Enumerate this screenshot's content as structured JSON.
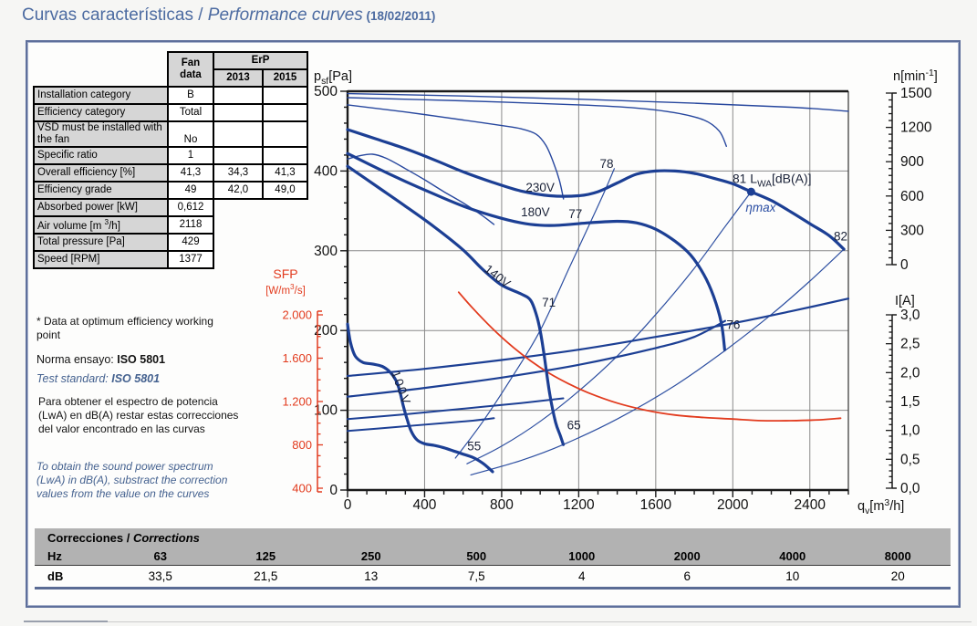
{
  "title": {
    "part1": "Curvas características / ",
    "part2": "Performance curves",
    "part3": " (18/02/2011)"
  },
  "fan_table": {
    "header": {
      "fan_line1": "Fan",
      "fan_line2": "data",
      "erp": "ErP",
      "y2013": "2013",
      "y2015": "2015"
    },
    "rows": [
      {
        "label": "Installation category",
        "value": "B",
        "erp": [
          "",
          ""
        ]
      },
      {
        "label": "Efficiency category",
        "value": "Total",
        "erp": [
          "",
          ""
        ]
      },
      {
        "label": "VSD must be installed with the fan",
        "value": "No",
        "erp": [
          "",
          ""
        ],
        "tall": true
      },
      {
        "label": "Specific ratio",
        "value": "1",
        "erp": [
          "",
          ""
        ]
      },
      {
        "label": "Overall efficiency [%]",
        "value": "41,3",
        "erp": [
          "34,3",
          "41,3"
        ]
      },
      {
        "label": "Efficiency grade",
        "value": "49",
        "erp": [
          "42,0",
          "49,0"
        ]
      },
      {
        "label": "Absorbed power [kW]",
        "value": "0,612",
        "erp": null
      },
      {
        "label": "Air volume [m ^{3}/h]",
        "value": "2118",
        "erp": null
      },
      {
        "label": "Total pressure [Pa]",
        "value": "429",
        "erp": null
      },
      {
        "label": "Speed [RPM]",
        "value": "1377",
        "erp": null
      }
    ]
  },
  "notes": {
    "star": "* Data at optimum efficiency working point",
    "norma_prefix": "Norma ensayo: ",
    "norma_value": "ISO 5801",
    "test_prefix": "Test standard: ",
    "test_value": "ISO 5801",
    "para_es": "Para obtener el espectro de potencia (LwA) en dB(A) restar estas correcciones del valor encontrado en las curvas",
    "para_en": "To obtain the sound power spectrum (LwA) in dB(A), substract the correction values from the value on the curves"
  },
  "chart_data": {
    "type": "line",
    "title": "Performance curves",
    "x_axis": {
      "label": "q_{v}[m^{3}/h]",
      "min": 0,
      "max": 2600,
      "major_ticks": [
        0,
        400,
        800,
        1200,
        1600,
        2000,
        2400
      ],
      "minor_step": 100
    },
    "y_axis": {
      "label": "p_{sf}[Pa]",
      "min": 0,
      "max": 500,
      "major_ticks": [
        0,
        100,
        200,
        300,
        400,
        500
      ],
      "minor_step": 20
    },
    "n_axis": {
      "label": "n[min^{-1}]",
      "min": 0,
      "max": 1500,
      "ticks": [
        1500,
        1200,
        900,
        600,
        300,
        0
      ],
      "minor_step": 60
    },
    "i_axis": {
      "label": "I[A]",
      "min": 0,
      "max": 3,
      "ticks": [
        "3,0",
        "2,5",
        "2,0",
        "1,5",
        "1,0",
        "0,5",
        "0,0"
      ],
      "minor_step": 0.1
    },
    "sfp_axis": {
      "label": "SFP",
      "unit": "[W/m^{3}/s]",
      "min": 400,
      "max": 2000,
      "ticks": [
        "2.000",
        "1.600",
        "1.200",
        "800",
        "400"
      ],
      "color": "#e23b1e"
    },
    "grid": true,
    "colors": {
      "blue": "#1c3f94",
      "thin_blue": "#27479e",
      "red": "#e23b1e",
      "grid": "#8a8a8a",
      "axis": "#1a1a1a"
    },
    "series": [
      {
        "name": "pressure-230V",
        "role": "pressure",
        "width": 3.2,
        "color": "#1c3f94",
        "points": [
          [
            0,
            452
          ],
          [
            150,
            440
          ],
          [
            300,
            428
          ],
          [
            450,
            414
          ],
          [
            600,
            399
          ],
          [
            750,
            386
          ],
          [
            900,
            375
          ],
          [
            1050,
            369
          ],
          [
            1200,
            369
          ],
          [
            1300,
            374
          ],
          [
            1400,
            385
          ],
          [
            1500,
            396
          ],
          [
            1600,
            400
          ],
          [
            1700,
            400
          ],
          [
            1800,
            397
          ],
          [
            1900,
            391
          ],
          [
            2000,
            384
          ],
          [
            2095,
            374
          ],
          [
            2200,
            363
          ],
          [
            2300,
            349
          ],
          [
            2400,
            334
          ],
          [
            2500,
            319
          ],
          [
            2577,
            302
          ]
        ]
      },
      {
        "name": "pressure-180V",
        "role": "pressure",
        "width": 3.2,
        "color": "#1c3f94",
        "points": [
          [
            0,
            422
          ],
          [
            150,
            404
          ],
          [
            300,
            387
          ],
          [
            450,
            371
          ],
          [
            600,
            356
          ],
          [
            750,
            344
          ],
          [
            900,
            335
          ],
          [
            1000,
            332
          ],
          [
            1100,
            332
          ],
          [
            1250,
            335
          ],
          [
            1400,
            337
          ],
          [
            1500,
            335
          ],
          [
            1600,
            327
          ],
          [
            1700,
            312
          ],
          [
            1780,
            295
          ],
          [
            1850,
            270
          ],
          [
            1900,
            243
          ],
          [
            1940,
            210
          ],
          [
            1958,
            176
          ]
        ]
      },
      {
        "name": "pressure-140V",
        "role": "pressure",
        "width": 3.2,
        "color": "#1c3f94",
        "points": [
          [
            0,
            406
          ],
          [
            150,
            381
          ],
          [
            300,
            356
          ],
          [
            450,
            330
          ],
          [
            600,
            301
          ],
          [
            700,
            277
          ],
          [
            800,
            257
          ],
          [
            900,
            246
          ],
          [
            950,
            238
          ],
          [
            980,
            220
          ],
          [
            1000,
            200
          ],
          [
            1020,
            170
          ],
          [
            1050,
            120
          ],
          [
            1080,
            85
          ],
          [
            1105,
            68
          ],
          [
            1120,
            57
          ]
        ]
      },
      {
        "name": "pressure-100V",
        "role": "pressure",
        "width": 3.2,
        "color": "#1c3f94",
        "points": [
          [
            0,
            208
          ],
          [
            15,
            185
          ],
          [
            40,
            168
          ],
          [
            80,
            160
          ],
          [
            130,
            158
          ],
          [
            180,
            155
          ],
          [
            220,
            148
          ],
          [
            250,
            138
          ],
          [
            270,
            125
          ],
          [
            290,
            105
          ],
          [
            310,
            88
          ],
          [
            330,
            74
          ],
          [
            360,
            63
          ],
          [
            400,
            58
          ],
          [
            450,
            56
          ],
          [
            500,
            53
          ],
          [
            550,
            49
          ],
          [
            600,
            45
          ],
          [
            650,
            41
          ],
          [
            700,
            34
          ],
          [
            730,
            28
          ],
          [
            753,
            23
          ]
        ]
      },
      {
        "name": "speed-230V",
        "role": "rpm",
        "width": 1.4,
        "color": "#27479e",
        "points": [
          [
            0,
            497
          ],
          [
            600,
            494
          ],
          [
            1200,
            490
          ],
          [
            1800,
            485
          ],
          [
            2300,
            480
          ],
          [
            2600,
            475
          ]
        ]
      },
      {
        "name": "speed-180V",
        "role": "rpm",
        "width": 1.4,
        "color": "#27479e",
        "points": [
          [
            0,
            492
          ],
          [
            600,
            488
          ],
          [
            1200,
            483
          ],
          [
            1500,
            479
          ],
          [
            1700,
            473
          ],
          [
            1850,
            464
          ],
          [
            1930,
            450
          ],
          [
            1967,
            431
          ]
        ]
      },
      {
        "name": "speed-140V",
        "role": "rpm",
        "width": 1.4,
        "color": "#27479e",
        "points": [
          [
            0,
            483
          ],
          [
            300,
            474
          ],
          [
            600,
            464
          ],
          [
            800,
            457
          ],
          [
            900,
            453
          ],
          [
            980,
            446
          ],
          [
            1030,
            432
          ],
          [
            1070,
            410
          ],
          [
            1100,
            388
          ],
          [
            1121,
            365
          ]
        ]
      },
      {
        "name": "speed-100V",
        "role": "rpm",
        "width": 1.4,
        "color": "#27479e",
        "points": [
          [
            0,
            415
          ],
          [
            60,
            419
          ],
          [
            130,
            421
          ],
          [
            200,
            416
          ],
          [
            300,
            403
          ],
          [
            400,
            389
          ],
          [
            500,
            374
          ],
          [
            600,
            360
          ],
          [
            700,
            344
          ],
          [
            760,
            333
          ]
        ]
      },
      {
        "name": "current-230V",
        "role": "current",
        "width": 2.2,
        "color": "#1c3f94",
        "points": [
          [
            0,
            143
          ],
          [
            400,
            152
          ],
          [
            800,
            163
          ],
          [
            1200,
            176
          ],
          [
            1600,
            192
          ],
          [
            2000,
            209
          ],
          [
            2300,
            224
          ],
          [
            2600,
            240
          ]
        ]
      },
      {
        "name": "current-180V",
        "role": "current",
        "width": 2.2,
        "color": "#1c3f94",
        "points": [
          [
            0,
            117
          ],
          [
            400,
            128
          ],
          [
            800,
            141
          ],
          [
            1200,
            157
          ],
          [
            1600,
            178
          ],
          [
            1800,
            192
          ],
          [
            1960,
            212
          ]
        ]
      },
      {
        "name": "current-140V",
        "role": "current",
        "width": 2,
        "color": "#1c3f94",
        "points": [
          [
            0,
            89
          ],
          [
            300,
            95
          ],
          [
            600,
            102
          ],
          [
            900,
            109
          ],
          [
            1120,
            115
          ]
        ]
      },
      {
        "name": "current-100V",
        "role": "current",
        "width": 2,
        "color": "#1c3f94",
        "points": [
          [
            0,
            74
          ],
          [
            250,
            79
          ],
          [
            500,
            84
          ],
          [
            650,
            87
          ],
          [
            760,
            90
          ]
        ]
      },
      {
        "name": "sfp-curve",
        "role": "sfp",
        "width": 1.8,
        "color": "#e23b1e",
        "points": [
          [
            577,
            248
          ],
          [
            650,
            228
          ],
          [
            750,
            203
          ],
          [
            850,
            181
          ],
          [
            950,
            162
          ],
          [
            1050,
            146
          ],
          [
            1150,
            133
          ],
          [
            1250,
            122
          ],
          [
            1400,
            109
          ],
          [
            1550,
            100
          ],
          [
            1700,
            94
          ],
          [
            1850,
            91
          ],
          [
            2000,
            89
          ],
          [
            2150,
            87
          ],
          [
            2300,
            87
          ],
          [
            2450,
            88
          ],
          [
            2560,
            90
          ]
        ]
      },
      {
        "name": "system-line-55-78",
        "role": "system",
        "width": 1.2,
        "color": "#2d4fa1",
        "points": [
          [
            560,
            40
          ],
          [
            700,
            85
          ],
          [
            850,
            140
          ],
          [
            1000,
            200
          ],
          [
            1150,
            278
          ],
          [
            1250,
            330
          ],
          [
            1330,
            372
          ],
          [
            1385,
            403
          ]
        ]
      },
      {
        "name": "system-line-65-82",
        "role": "system",
        "width": 1.2,
        "color": "#2d4fa1",
        "points": [
          [
            640,
            19
          ],
          [
            900,
            37
          ],
          [
            1120,
            57
          ],
          [
            1400,
            89
          ],
          [
            1700,
            131
          ],
          [
            1960,
            175
          ],
          [
            2200,
            220
          ],
          [
            2400,
            262
          ],
          [
            2577,
            302
          ]
        ]
      },
      {
        "name": "system-line-etamax",
        "role": "system",
        "width": 1.2,
        "color": "#2d4fa1",
        "points": [
          [
            620,
            33
          ],
          [
            800,
            55
          ],
          [
            1000,
            86
          ],
          [
            1200,
            124
          ],
          [
            1400,
            168
          ],
          [
            1600,
            220
          ],
          [
            1800,
            278
          ],
          [
            1950,
            327
          ],
          [
            2095,
            374
          ]
        ]
      }
    ],
    "labels": [
      {
        "t": "230V",
        "q": 1000,
        "p": 374
      },
      {
        "t": "180V",
        "q": 975,
        "p": 343
      },
      {
        "t": "140V",
        "q": 765,
        "p": 264,
        "rot": 38
      },
      {
        "t": "100V",
        "q": 258,
        "p": 126,
        "rot": 70,
        "ls": 2
      },
      {
        "t": "78",
        "q": 1345,
        "p": 404
      },
      {
        "t": "77",
        "q": 1183,
        "p": 341
      },
      {
        "t": "71",
        "q": 1045,
        "p": 230
      },
      {
        "t": "55",
        "q": 657,
        "p": 50
      },
      {
        "t": "65",
        "q": 1175,
        "p": 76
      },
      {
        "t": "76",
        "q": 2003,
        "p": 202
      },
      {
        "t": "81",
        "q": 2035,
        "p": 385
      },
      {
        "t": "L_{WA}[dB(A)]",
        "q": 2090,
        "p": 385,
        "anchor": "start",
        "rich": true,
        "fs": 14
      },
      {
        "t": "ηmax",
        "q": 2145,
        "p": 349,
        "c": "#2b4ea3",
        "it": true
      },
      {
        "t": "82",
        "q": 2560,
        "p": 313
      }
    ],
    "marker": {
      "q": 2095,
      "p": 374,
      "r": 4.5,
      "color": "#1c3f94",
      "label": "81",
      "note": "ηmax"
    }
  },
  "corrections": {
    "title_es": "Correcciones",
    "sep": " / ",
    "title_en": "Corrections",
    "row1_label": "Hz",
    "row2_label": "dB",
    "freqs": [
      "63",
      "125",
      "250",
      "500",
      "1000",
      "2000",
      "4000",
      "8000"
    ],
    "values": [
      "33,5",
      "21,5",
      "13",
      "7,5",
      "4",
      "6",
      "10",
      "20"
    ]
  }
}
